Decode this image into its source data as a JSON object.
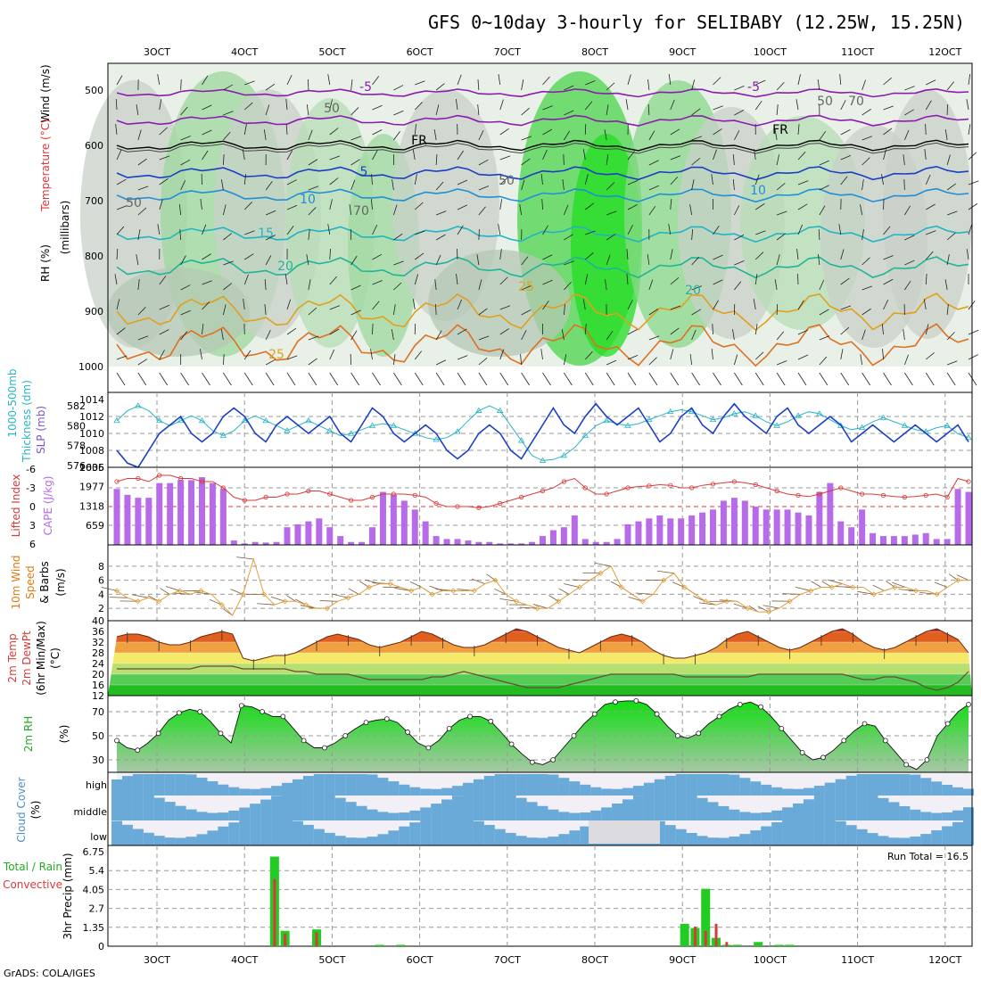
{
  "title": "GFS 0~10day 3-hourly for SELIBABY (12.25W, 15.25N)",
  "footer": "GrADS: COLA/IGES",
  "x_ticks": [
    "3OCT",
    "4OCT",
    "5OCT",
    "6OCT",
    "7OCT",
    "8OCT",
    "9OCT",
    "10OCT",
    "11OCT",
    "12OCT"
  ],
  "panels": {
    "upper": {
      "ylabels": [
        "Wind (m/s)",
        "Temperature (°C)",
        "RH (%)",
        "(millibars)"
      ],
      "yticks": [
        "500",
        "600",
        "700",
        "800",
        "900",
        "1000"
      ],
      "contour_labels": [
        "-5",
        "-5",
        "FR",
        "FR",
        "5",
        "10",
        "10",
        "15",
        "20",
        "20",
        "25",
        "25",
        "50",
        "50",
        "50",
        "50",
        "70",
        "70"
      ]
    },
    "thickness": {
      "ylabels": [
        "1000-500mb",
        "Thickness (dm)",
        "SLP (mb)"
      ],
      "left_ticks": [
        "582",
        "580",
        "578",
        "576"
      ],
      "right_ticks": [
        "1014",
        "1012",
        "1010",
        "1008",
        "1006"
      ]
    },
    "cape": {
      "ylabels": [
        "Lifted Index",
        "CAPE (J/kg)"
      ],
      "left_ticks": [
        "-6",
        "-3",
        "0",
        "3",
        "6"
      ],
      "right_ticks": [
        "2635",
        "1977",
        "1318",
        "659"
      ]
    },
    "wind10": {
      "ylabels": [
        "10m Wind",
        "Speed",
        "& Barbs",
        "(m/s)"
      ],
      "yticks": [
        "8",
        "6",
        "4",
        "2"
      ]
    },
    "temp2m": {
      "ylabels": [
        "2m Temp",
        "2m DewPt",
        "(6hr Min/Max)",
        "(°C)"
      ],
      "yticks": [
        "40",
        "36",
        "32",
        "28",
        "24",
        "20",
        "16",
        "12"
      ]
    },
    "rh2m": {
      "ylabels": [
        "2m RH",
        "(%)"
      ],
      "yticks": [
        "70",
        "50",
        "30"
      ]
    },
    "cloud": {
      "ylabels": [
        "Cloud Cover",
        "(%)"
      ],
      "yticks": [
        "high",
        "middle",
        "low"
      ]
    },
    "precip": {
      "ylabels": [
        "Total / Rain",
        "Convective",
        "3hr Precip (mm)"
      ],
      "yticks": [
        "6.75",
        "5.4",
        "4.05",
        "2.7",
        "1.35",
        "0"
      ],
      "run_total": "Run Total = 16.5"
    }
  },
  "colors": {
    "slp": "#1a3fc4",
    "thickness": "#29b5c4",
    "lifted_index": "#d83a3a",
    "cape_bar": "#b86be8",
    "wind_speed": "#e0a040",
    "rh_green": "#22cc22",
    "cloud_blue": "#6aaad8"
  },
  "chart_data": [
    {
      "type": "line",
      "title": "1000-500mb Thickness (dm) / SLP (mb)",
      "series": [
        {
          "name": "SLP (mb)",
          "values": [
            1008,
            1006.5,
            1006,
            1008,
            1010,
            1011,
            1012,
            1010,
            1009,
            1010,
            1012,
            1013,
            1012,
            1010,
            1009,
            1011,
            1012,
            1011,
            1010,
            1011,
            1012,
            1010,
            1009,
            1011,
            1013,
            1012,
            1010,
            1009,
            1010,
            1011,
            1010,
            1008,
            1007,
            1008,
            1010,
            1011,
            1010,
            1008,
            1007,
            1009,
            1011,
            1013,
            1011,
            1010,
            1012,
            1013.5,
            1012,
            1011,
            1012,
            1013,
            1011,
            1009,
            1010,
            1012,
            1013,
            1011,
            1010,
            1012,
            1013.5,
            1012,
            1011,
            1010,
            1012,
            1013,
            1011,
            1010,
            1011,
            1012,
            1011,
            1009,
            1010,
            1011,
            1010,
            1009,
            1010,
            1011,
            1010,
            1009,
            1010,
            1011,
            1009
          ]
        },
        {
          "name": "1000-500mb Thickness (dm)",
          "values": [
            580.5,
            581.5,
            582,
            581.5,
            580.5,
            580,
            580.5,
            581,
            580.5,
            579.5,
            579,
            579.5,
            580.5,
            581,
            580.5,
            580,
            579.5,
            580,
            580.5,
            580,
            579.5,
            579,
            579.2,
            579.6,
            580,
            580.2,
            580,
            579.6,
            579.2,
            578.8,
            578.6,
            578.8,
            579.4,
            580.5,
            581.5,
            582,
            581.5,
            580,
            578.5,
            577,
            576.5,
            576.6,
            577,
            577.8,
            579,
            580,
            580.5,
            580.2,
            580,
            580.2,
            580.6,
            581,
            581.4,
            581.6,
            581.4,
            581,
            580.6,
            580.8,
            581.2,
            581.4,
            581,
            580.4,
            580,
            580.4,
            581,
            581.4,
            581.2,
            580.6,
            580,
            579.6,
            579.8,
            580.4,
            580.8,
            580.4,
            580,
            579.6,
            579.4,
            579.8,
            580,
            579.2,
            578.8
          ]
        }
      ]
    },
    {
      "type": "bar",
      "title": "Lifted Index / CAPE (J/kg)",
      "series": [
        {
          "name": "CAPE (J/kg)",
          "values": [
            1900,
            1700,
            1600,
            1600,
            2100,
            2100,
            2200,
            2200,
            2300,
            2100,
            1900,
            150,
            50,
            100,
            80,
            100,
            600,
            700,
            800,
            900,
            600,
            300,
            100,
            100,
            600,
            1800,
            1700,
            1500,
            1200,
            800,
            300,
            200,
            200,
            150,
            100,
            100,
            50,
            50,
            50,
            100,
            300,
            500,
            600,
            1000,
            200,
            100,
            100,
            200,
            700,
            800,
            900,
            1000,
            900,
            900,
            1000,
            1100,
            1200,
            1500,
            1600,
            1500,
            1300,
            1200,
            1200,
            1200,
            1100,
            1000,
            1800,
            2100,
            800,
            600,
            1200,
            400,
            300,
            300,
            300,
            350,
            400,
            200,
            200,
            1900,
            1800
          ]
        },
        {
          "name": "Lifted Index",
          "values": [
            -4,
            -4.5,
            -4.5,
            -4,
            -5,
            -5,
            -4.5,
            -4.5,
            -4,
            -4,
            -3,
            -1.5,
            -1,
            -1,
            -1.5,
            -1.5,
            -2,
            -2,
            -2.5,
            -2.5,
            -2,
            -1.5,
            -1,
            -1,
            -1.5,
            -2,
            -2,
            -2,
            -1.8,
            -1.5,
            -0.5,
            0,
            0,
            0,
            0.2,
            0,
            -0.5,
            -1,
            -1.5,
            -2,
            -2.5,
            -3,
            -4,
            -4.5,
            -3,
            -2,
            -2,
            -2.5,
            -3,
            -3.2,
            -3.3,
            -3.5,
            -3.4,
            -3,
            -3,
            -3.4,
            -3.6,
            -3.8,
            -4,
            -3.8,
            -3.5,
            -3,
            -2.5,
            -2,
            -1.8,
            -1.6,
            -2,
            -2.5,
            -3,
            -2.5,
            -2,
            -2,
            -1.8,
            -1.6,
            -1.5,
            -1.6,
            -1.8,
            -2,
            -1.5,
            -4.5,
            -4
          ]
        }
      ]
    },
    {
      "type": "line",
      "title": "10m Wind Speed (m/s)",
      "series": [
        {
          "name": "10m Wind Speed",
          "values": [
            4.5,
            3.5,
            3,
            3.5,
            3,
            4,
            4.5,
            4,
            4.5,
            4,
            2.5,
            1,
            4,
            9,
            4,
            2.5,
            3,
            3,
            2.5,
            2,
            2,
            3,
            3.5,
            4,
            5,
            5.5,
            5.5,
            5,
            4.5,
            5,
            4,
            4.5,
            4.5,
            4.5,
            4.5,
            5.5,
            6,
            4,
            3,
            2.5,
            2,
            2,
            3,
            4,
            5,
            6,
            7,
            8,
            5,
            4,
            3,
            4,
            6,
            7,
            5,
            4,
            3,
            2.5,
            3,
            3,
            2,
            1.5,
            1.5,
            2,
            3,
            4,
            4.5,
            5,
            5,
            5.5,
            5,
            5,
            4,
            4.5,
            5,
            5,
            4.5,
            4.5,
            4,
            5,
            6,
            6
          ]
        }
      ]
    },
    {
      "type": "area",
      "title": "2m Temp / 2m DewPt (°C)",
      "ylim": [
        12,
        40
      ],
      "series": [
        {
          "name": "2m Temp",
          "values": [
            34,
            35,
            35,
            34,
            32,
            31,
            31,
            32,
            34,
            35,
            36,
            35,
            26,
            25,
            26,
            27,
            27,
            28,
            30,
            32,
            34,
            35,
            34,
            33,
            31,
            30,
            31,
            32,
            34,
            36,
            35,
            33,
            31,
            30,
            30,
            31,
            33,
            35,
            37,
            36,
            34,
            32,
            30,
            29,
            28,
            30,
            32,
            34,
            35,
            34,
            32,
            29,
            27,
            26,
            26,
            27,
            28,
            30,
            33,
            35,
            36,
            34,
            32,
            30,
            29,
            30,
            32,
            34,
            36,
            37,
            35,
            32,
            30,
            29,
            30,
            32,
            34,
            36,
            37,
            35,
            33,
            28
          ]
        },
        {
          "name": "2m DewPt",
          "values": [
            22,
            22,
            22,
            22,
            22,
            22,
            22,
            22,
            23,
            23,
            23,
            23,
            22,
            22,
            22,
            22,
            22,
            21,
            21,
            20,
            20,
            20,
            20,
            19,
            18,
            18,
            18,
            18,
            18,
            18,
            19,
            19,
            20,
            21,
            20,
            19,
            18,
            17,
            16,
            15,
            15,
            15,
            15,
            16,
            17,
            18,
            19,
            20,
            20,
            20,
            20,
            20,
            20,
            20,
            19,
            19,
            19,
            19,
            19,
            19,
            19,
            20,
            20,
            20,
            20,
            20,
            20,
            20,
            20,
            20,
            19,
            18,
            18,
            19,
            19,
            18,
            17,
            15,
            14,
            15,
            17,
            21
          ]
        }
      ]
    },
    {
      "type": "area",
      "title": "2m RH (%)",
      "series": [
        {
          "name": "2m RH",
          "values": [
            46,
            40,
            38,
            44,
            52,
            63,
            69,
            72,
            70,
            62,
            52,
            44,
            75,
            74,
            70,
            66,
            66,
            56,
            46,
            40,
            40,
            44,
            50,
            56,
            61,
            63,
            64,
            61,
            53,
            44,
            40,
            46,
            56,
            63,
            66,
            66,
            62,
            53,
            43,
            35,
            28,
            26,
            30,
            40,
            50,
            60,
            68,
            76,
            78,
            79,
            79,
            76,
            68,
            58,
            50,
            48,
            52,
            60,
            66,
            72,
            76,
            78,
            74,
            66,
            56,
            46,
            36,
            30,
            32,
            38,
            46,
            54,
            60,
            58,
            46,
            36,
            26,
            22,
            30,
            50,
            60,
            70,
            76
          ]
        }
      ]
    },
    {
      "type": "bar",
      "title": "3hr Precip (mm)",
      "series": [
        {
          "name": "Total",
          "values": [
            0,
            0,
            0,
            0,
            0,
            0,
            0,
            0,
            0,
            0,
            0,
            0,
            0,
            0,
            0,
            6.4,
            1.1,
            0,
            0,
            1.2,
            0,
            0,
            0,
            0,
            0,
            0.1,
            0,
            0.1,
            0,
            0,
            0,
            0,
            0,
            0,
            0,
            0,
            0,
            0,
            0,
            0,
            0,
            0,
            0,
            0,
            0,
            0,
            0,
            0,
            0,
            0,
            0,
            0,
            0,
            0,
            1.6,
            1.3,
            4.1,
            0.6,
            0.1,
            0.1,
            0,
            0.3,
            0,
            0.1,
            0.1,
            0,
            0,
            0,
            0,
            0,
            0,
            0,
            0,
            0,
            0,
            0,
            0,
            0,
            0,
            0,
            0,
            0
          ]
        },
        {
          "name": "Convective",
          "values": [
            0,
            0,
            0,
            0,
            0,
            0,
            0,
            0,
            0,
            0,
            0,
            0,
            0,
            0,
            0,
            4.8,
            0.9,
            0,
            0,
            1.0,
            0,
            0,
            0,
            0,
            0,
            0,
            0,
            0,
            0,
            0,
            0,
            0,
            0,
            0,
            0,
            0,
            0,
            0,
            0,
            0,
            0,
            0,
            0,
            0,
            0,
            0,
            0,
            0,
            0,
            0,
            0,
            0,
            0,
            0,
            0,
            1.4,
            1.1,
            1.6,
            0.3,
            0,
            0,
            0,
            0,
            0,
            0,
            0,
            0,
            0,
            0,
            0,
            0,
            0,
            0,
            0,
            0,
            0,
            0,
            0,
            0,
            0,
            0
          ]
        }
      ],
      "ylim": [
        0,
        6.75
      ]
    }
  ]
}
